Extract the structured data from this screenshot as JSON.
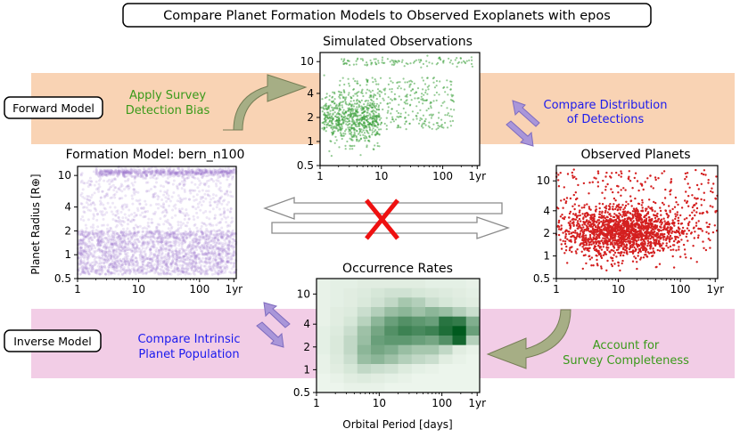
{
  "title": "Compare Planet Formation Models to Observed Exoplanets with epos",
  "bands": {
    "forward": {
      "label": "Forward Model",
      "color": "#f9d3b4"
    },
    "inverse": {
      "label": "Inverse Model",
      "color": "#f2cde6"
    }
  },
  "annotations": {
    "survey_bias": [
      "Apply Survey",
      "Detection Bias"
    ],
    "compare_detections": [
      "Compare Distribution",
      "of Detections"
    ],
    "compare_intrinsic": [
      "Compare Intrinsic",
      "Planet Population"
    ],
    "completeness": [
      "Account for",
      "Survey Completeness"
    ]
  },
  "colors": {
    "green_text": "#3a9a1a",
    "blue_text": "#1a1aee",
    "cross": "#ee1111",
    "arrow_fill": "#a6ae85",
    "purple_arrow": "#a996d9"
  },
  "chart_data": [
    {
      "id": "simulated",
      "type": "scatter",
      "title": "Simulated Observations",
      "color": "#3ca03c",
      "x_scale": "log",
      "y_scale": "log",
      "xlim": [
        1,
        400
      ],
      "ylim": [
        0.5,
        13
      ],
      "xticks": [
        "1",
        "10",
        "100",
        "1yr"
      ],
      "yticks": [
        "0.5",
        "1",
        "2",
        "4",
        "10"
      ],
      "distribution": {
        "n_points": 1500,
        "core_period_days": [
          1,
          10
        ],
        "core_radius": [
          1.2,
          2.5
        ],
        "upper_band_radius": 10.5
      }
    },
    {
      "id": "formation",
      "type": "scatter",
      "title": "Formation Model: bern_n100",
      "color": "#9b72cb",
      "ylabel": "Planet Radius [R⊕]",
      "x_scale": "log",
      "y_scale": "log",
      "xlim": [
        1,
        400
      ],
      "ylim": [
        0.5,
        13
      ],
      "xticks": [
        "1",
        "10",
        "100",
        "1yr"
      ],
      "yticks": [
        "0.5",
        "1",
        "2",
        "4",
        "10"
      ],
      "distribution": {
        "n_points": 6000,
        "low_radius_band": [
          0.6,
          2.0
        ],
        "upper_band_radius": 11
      }
    },
    {
      "id": "observed",
      "type": "scatter",
      "title": "Observed Planets",
      "color": "#d42020",
      "x_scale": "log",
      "y_scale": "log",
      "xlim": [
        1,
        400
      ],
      "ylim": [
        0.5,
        16
      ],
      "xticks": [
        "1",
        "10",
        "100",
        "1yr"
      ],
      "yticks": [
        "0.5",
        "1",
        "2",
        "4",
        "10"
      ],
      "distribution": {
        "n_points": 2200,
        "median_period_days": 15,
        "median_radius": 2.2
      }
    },
    {
      "id": "occurrence",
      "type": "heatmap",
      "title": "Occurrence Rates",
      "xlabel": "Orbital Period [days]",
      "x_scale": "log",
      "y_scale": "log",
      "xlim": [
        1,
        400
      ],
      "ylim": [
        0.5,
        16
      ],
      "xticks": [
        "1",
        "10",
        "100",
        "1yr"
      ],
      "yticks": [
        "0.5",
        "1",
        "2",
        "4",
        "10"
      ],
      "x_bins": 12,
      "y_bins": 12,
      "grid": [
        [
          0.03,
          0.04,
          0.04,
          0.05,
          0.05,
          0.05,
          0.05,
          0.05,
          0.04,
          0.04,
          0.04,
          0.03
        ],
        [
          0.03,
          0.04,
          0.05,
          0.06,
          0.08,
          0.1,
          0.1,
          0.08,
          0.07,
          0.06,
          0.05,
          0.04
        ],
        [
          0.03,
          0.04,
          0.05,
          0.07,
          0.1,
          0.15,
          0.25,
          0.2,
          0.12,
          0.08,
          0.06,
          0.05
        ],
        [
          0.03,
          0.05,
          0.06,
          0.12,
          0.2,
          0.3,
          0.35,
          0.28,
          0.35,
          0.3,
          0.2,
          0.12
        ],
        [
          0.03,
          0.05,
          0.08,
          0.18,
          0.35,
          0.5,
          0.6,
          0.55,
          0.5,
          0.8,
          0.75,
          0.4
        ],
        [
          0.04,
          0.06,
          0.12,
          0.28,
          0.45,
          0.6,
          0.7,
          0.65,
          0.7,
          0.85,
          1.0,
          0.5
        ],
        [
          0.04,
          0.07,
          0.15,
          0.3,
          0.5,
          0.55,
          0.55,
          0.5,
          0.45,
          0.6,
          0.9,
          0.2
        ],
        [
          0.04,
          0.07,
          0.15,
          0.35,
          0.45,
          0.4,
          0.3,
          0.25,
          0.25,
          0.15,
          0.05,
          0.03
        ],
        [
          0.03,
          0.06,
          0.12,
          0.3,
          0.35,
          0.28,
          0.2,
          0.15,
          0.12,
          0.05,
          0.03,
          0.02
        ],
        [
          0.03,
          0.05,
          0.08,
          0.15,
          0.12,
          0.1,
          0.06,
          0.04,
          0.03,
          0.02,
          0.02,
          0.02
        ],
        [
          0.02,
          0.03,
          0.05,
          0.06,
          0.05,
          0.04,
          0.03,
          0.02,
          0.02,
          0.02,
          0.02,
          0.02
        ],
        [
          0.02,
          0.02,
          0.03,
          0.03,
          0.03,
          0.02,
          0.02,
          0.02,
          0.02,
          0.02,
          0.02,
          0.02
        ]
      ]
    }
  ]
}
